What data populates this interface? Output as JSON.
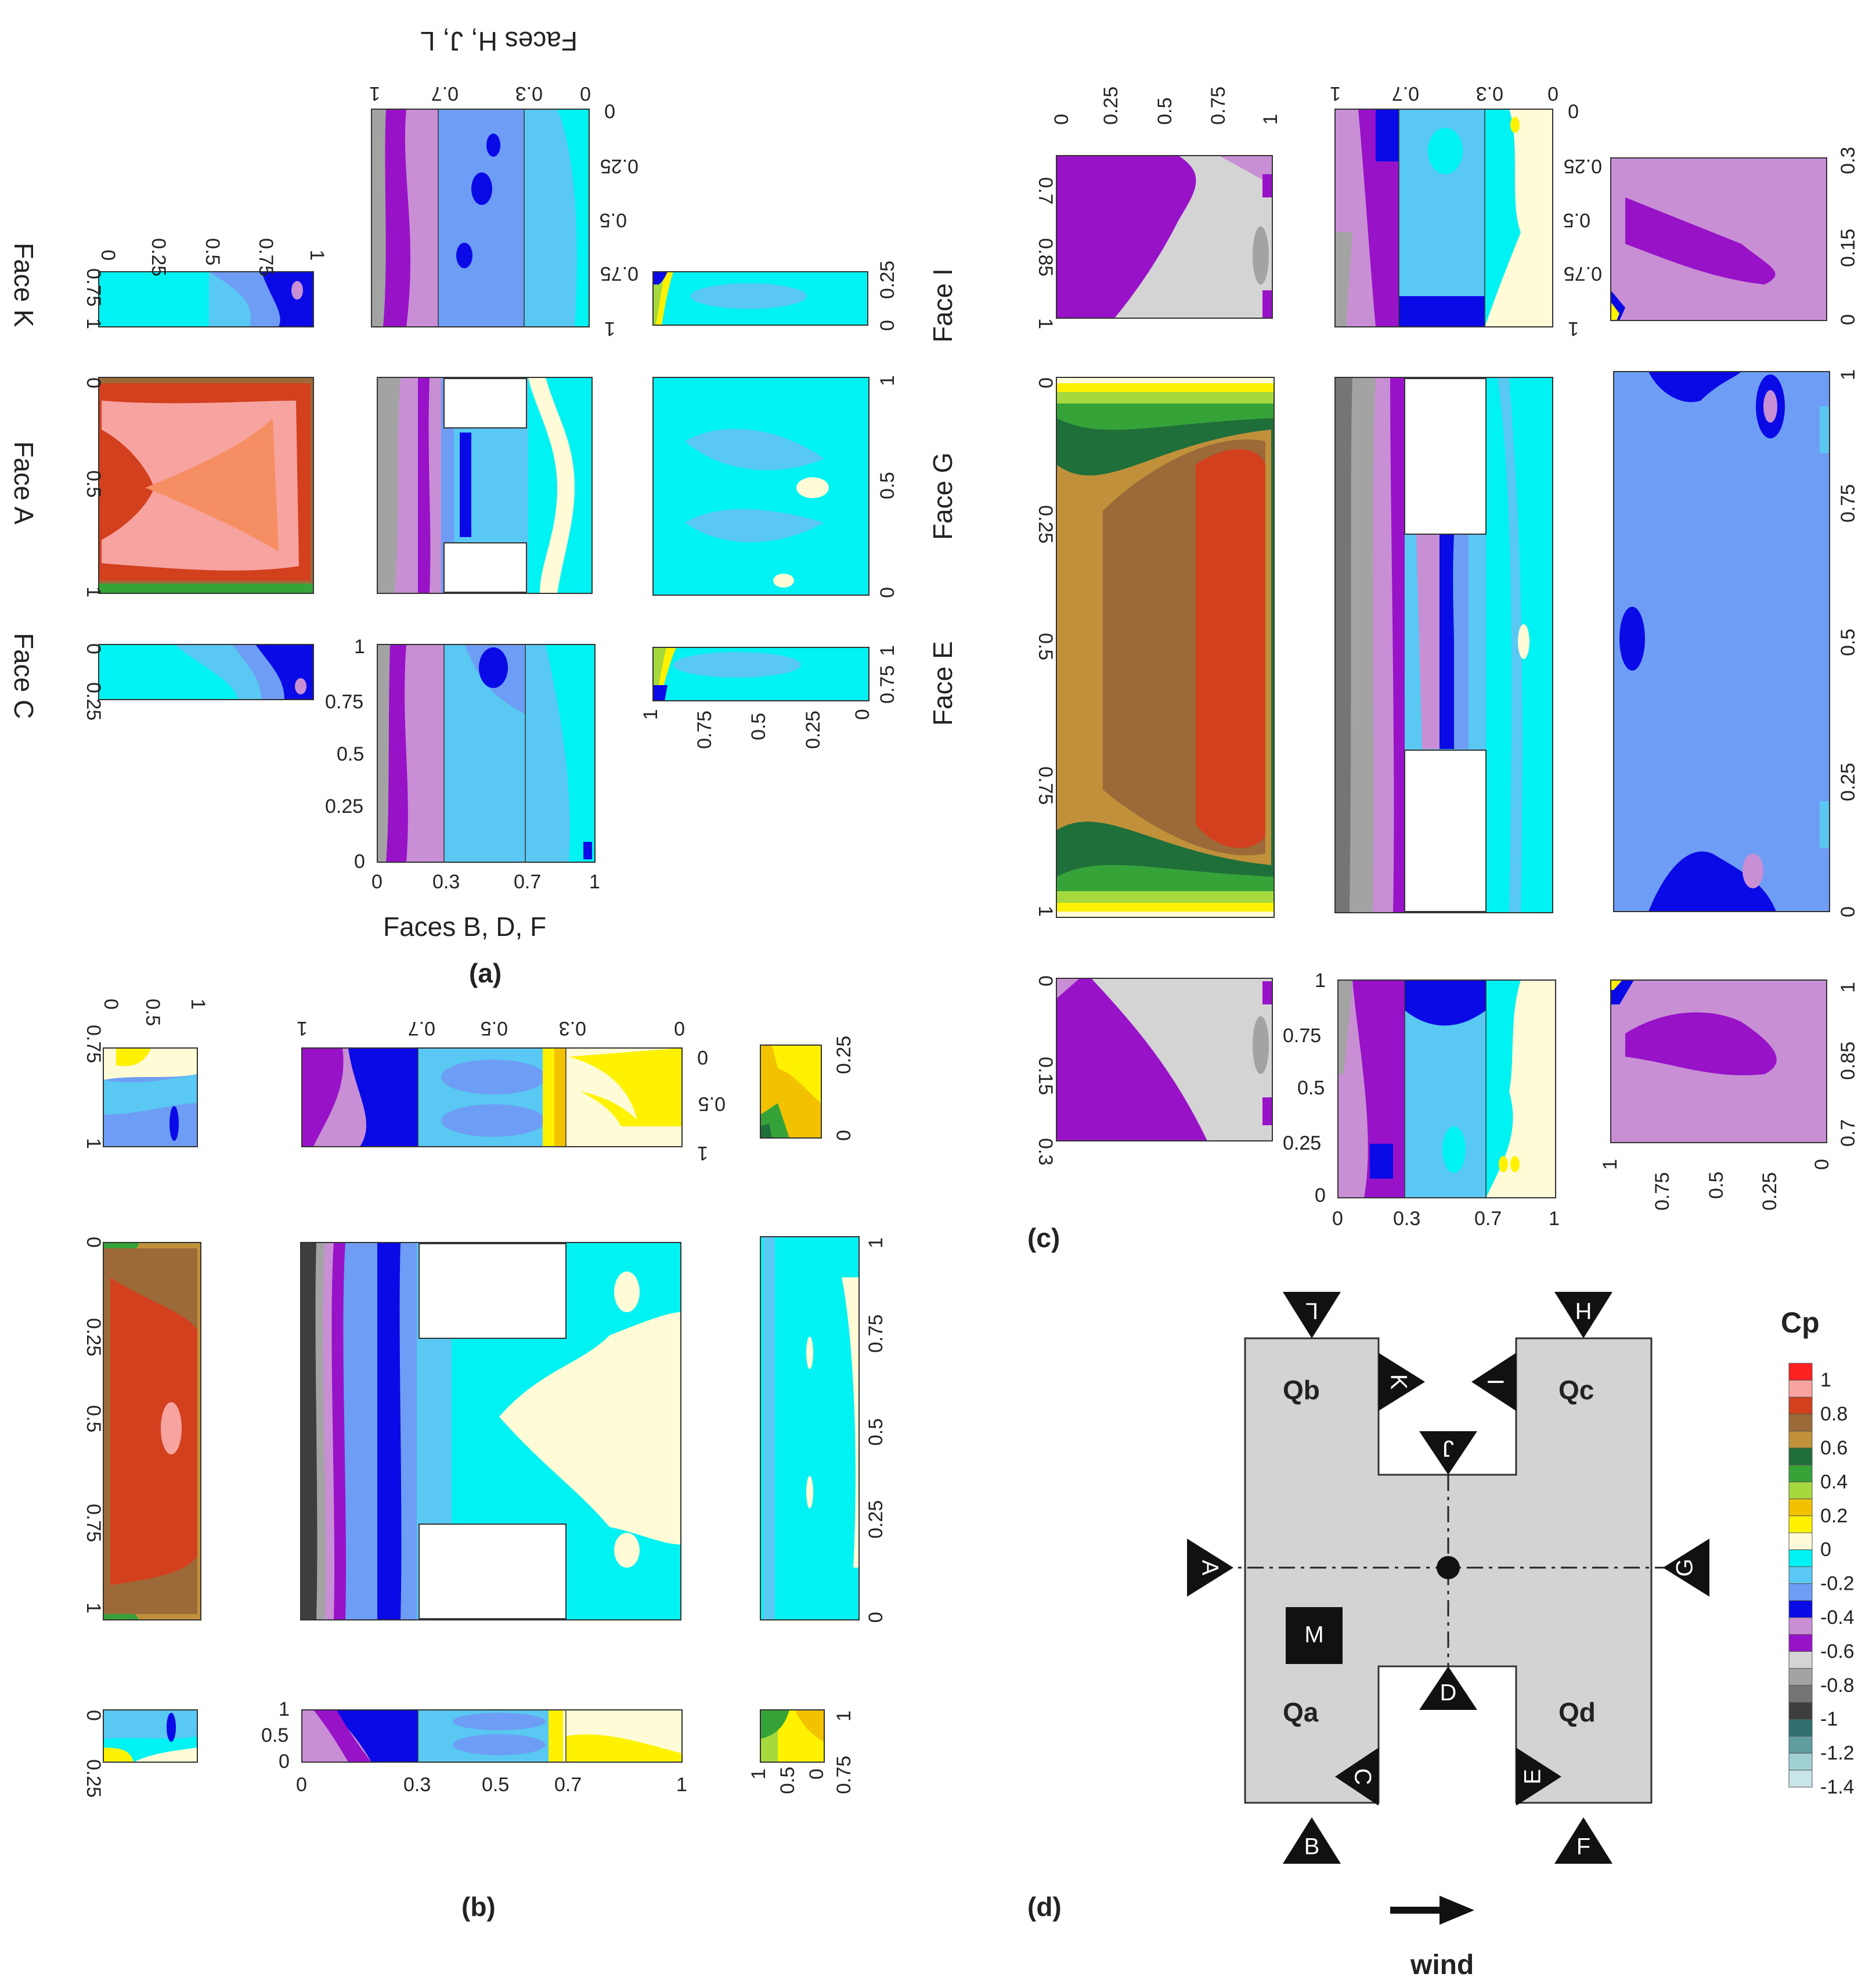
{
  "panels": {
    "a": {
      "caption": "(a)",
      "face_labels": {
        "A": "Face A",
        "C": "Face C",
        "K": "Face K",
        "E": "Face E",
        "G": "Face G",
        "I": "Face I"
      },
      "axis_titles": {
        "bottom": "Faces B, D, F",
        "top": "Faces H, J, L"
      },
      "ticks_bdf_x": [
        "0",
        "0.3",
        "0.7",
        "1"
      ],
      "ticks_bdf_y": [
        "0",
        "0.25",
        "0.5",
        "0.75",
        "1"
      ],
      "ticks_hjl_x": [
        "0",
        "0.3",
        "0.7",
        "1"
      ],
      "ticks_hjl_y": [
        "0",
        "0.25",
        "0.5",
        "0.75",
        "1"
      ],
      "ticks_side": [
        "0",
        "0.25",
        "0.5",
        "0.75",
        "1"
      ],
      "ticks_k": [
        "0.75",
        "1"
      ],
      "ticks_c": [
        "0",
        "0.25"
      ],
      "ticks_i": [
        "0",
        "0.25"
      ],
      "ticks_e": [
        "0.75",
        "1"
      ]
    },
    "b": {
      "caption": "(b)",
      "ticks_center_x": [
        "0",
        "0.3",
        "0.5",
        "0.7",
        "1"
      ],
      "ticks_center_y": [
        "0",
        "0.5",
        "1"
      ],
      "ticks_side": [
        "0",
        "0.25",
        "0.5",
        "0.75",
        "1"
      ],
      "ticks_small": [
        "0",
        "0.5",
        "1"
      ],
      "ticks_short_a": [
        "0",
        "0.25"
      ],
      "ticks_short_b": [
        "0.75",
        "1"
      ]
    },
    "c": {
      "caption": "(c)",
      "ticks_x": [
        "0",
        "0.3",
        "0.7",
        "1"
      ],
      "ticks_y": [
        "0",
        "0.25",
        "0.5",
        "0.75",
        "1"
      ],
      "ticks_cap": [
        "0.7",
        "0.85",
        "1"
      ],
      "ticks_cap2": [
        "0",
        "0.15",
        "0.3"
      ],
      "ticks_g": [
        "0",
        "0.25",
        "0.5",
        "0.75",
        "1"
      ]
    },
    "d": {
      "caption": "(d)",
      "wind_label": "wind",
      "quadrants": [
        "Qa",
        "Qb",
        "Qc",
        "Qd"
      ],
      "face_markers": [
        "A",
        "B",
        "C",
        "D",
        "E",
        "F",
        "G",
        "H",
        "I",
        "J",
        "K",
        "L",
        "M"
      ]
    }
  },
  "legend": {
    "title": "Cp",
    "levels": [
      {
        "label": "1",
        "color": "#ff2020"
      },
      {
        "label": "",
        "color": "#f7a3a0"
      },
      {
        "label": "0.8",
        "color": "#d2401e"
      },
      {
        "label": "",
        "color": "#9c6a38"
      },
      {
        "label": "0.6",
        "color": "#c0913a"
      },
      {
        "label": "",
        "color": "#1f6f3a"
      },
      {
        "label": "0.4",
        "color": "#36a339"
      },
      {
        "label": "",
        "color": "#a6d93e"
      },
      {
        "label": "0.2",
        "color": "#f2c200"
      },
      {
        "label": "",
        "color": "#fff200"
      },
      {
        "label": "0",
        "color": "#fffbd6"
      },
      {
        "label": "",
        "color": "#00f2f2"
      },
      {
        "label": "-0.2",
        "color": "#59c8f2"
      },
      {
        "label": "",
        "color": "#6e9df5"
      },
      {
        "label": "-0.4",
        "color": "#0a0ae6"
      },
      {
        "label": "",
        "color": "#c88fd4"
      },
      {
        "label": "-0.6",
        "color": "#9812c8"
      },
      {
        "label": "",
        "color": "#d4d4d4"
      },
      {
        "label": "-0.8",
        "color": "#a3a3a3"
      },
      {
        "label": "",
        "color": "#757575"
      },
      {
        "label": "-1",
        "color": "#3e3e3e"
      },
      {
        "label": "",
        "color": "#2f6f6f"
      },
      {
        "label": "-1.2",
        "color": "#5f9ea0"
      },
      {
        "label": "",
        "color": "#9fd0d4"
      },
      {
        "label": "-1.4",
        "color": "#c8e6ea"
      }
    ]
  },
  "colors": {
    "cyan": "#00f2f2",
    "lightblue": "#59c8f2",
    "midblue": "#6e9df5",
    "blue": "#0a0ae6",
    "lavender": "#c88fd4",
    "purple": "#9812c8",
    "grey": "#c8c8c8",
    "darkgrey": "#707070",
    "cream": "#fffbd6",
    "yellow": "#fff200",
    "gold": "#f2c200",
    "brown": "#9c6a38",
    "tan": "#c0913a",
    "red": "#d2401e",
    "pink": "#f7a3a0",
    "salmon": "#f58f63",
    "green": "#1f6f3a",
    "lime": "#a6d93e",
    "building": "#d3d3d3"
  }
}
